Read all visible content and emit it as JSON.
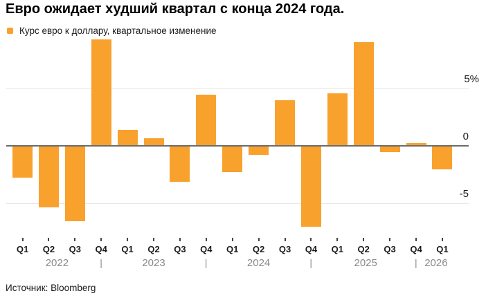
{
  "title": "Евро ожидает худший квартал с конца 2024 года.",
  "legend": {
    "label": "Курс евро к доллару, квартальное изменение"
  },
  "source": "Источник: Bloomberg",
  "colors": {
    "bar": "#F9A12D",
    "grid": "#E6E6E6",
    "zero_line": "#6B6B6B",
    "tick": "#444444",
    "axis_text": "#1A1A1A",
    "year_text": "#8A8A8A"
  },
  "chart_data": {
    "type": "bar",
    "title": "Евро ожидает худший квартал с конца 2024 года.",
    "series_name": "Курс евро к доллару, квартальное изменение",
    "unit": "%",
    "categories": [
      "Q1 2022",
      "Q2 2022",
      "Q3 2022",
      "Q4 2022",
      "Q1 2023",
      "Q2 2023",
      "Q3 2023",
      "Q4 2023",
      "Q1 2024",
      "Q2 2024",
      "Q3 2024",
      "Q4 2024",
      "Q1 2025",
      "Q2 2025",
      "Q3 2025",
      "Q4 2025",
      "Q1 2026"
    ],
    "quarter_labels": [
      "Q1",
      "Q2",
      "Q3",
      "Q4",
      "Q1",
      "Q2",
      "Q3",
      "Q4",
      "Q1",
      "Q2",
      "Q3",
      "Q4",
      "Q1",
      "Q2",
      "Q3",
      "Q4",
      "Q1"
    ],
    "values": [
      -2.7,
      -5.3,
      -6.5,
      9.2,
      1.3,
      0.6,
      -3.1,
      4.4,
      -2.2,
      -0.7,
      3.9,
      -7.0,
      4.5,
      9.0,
      -0.5,
      0.2,
      -2.0
    ],
    "xlabel": "",
    "ylabel": "",
    "ylim": [
      -8,
      10
    ],
    "yticks": [
      {
        "value": 5,
        "label": "5%"
      },
      {
        "value": 0,
        "label": "0"
      },
      {
        "value": -5,
        "label": "-5"
      }
    ],
    "years": [
      {
        "label": "2022",
        "qIndex": 1
      },
      {
        "label": "2023",
        "qIndex": 5
      },
      {
        "label": "2024",
        "qIndex": 9
      },
      {
        "label": "2025",
        "qIndex": 13
      },
      {
        "label": "2026",
        "qIndex": 16
      }
    ],
    "year_separators_qIndex": [
      3,
      7,
      11,
      15
    ],
    "grid": "horizontal",
    "legend_position": "top-left"
  }
}
